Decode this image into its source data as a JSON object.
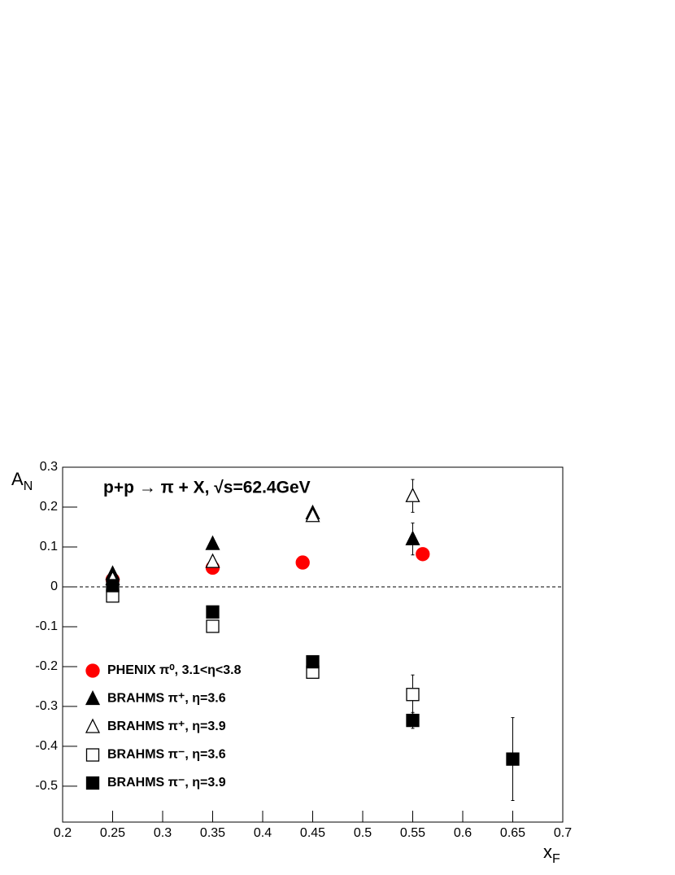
{
  "chart_data": {
    "type": "scatter",
    "title": "p+p → π + X, √s=62.4GeV",
    "xlabel": {
      "text": "x",
      "sub": "F"
    },
    "ylabel": {
      "text": "A",
      "sub": "N"
    },
    "xlim": [
      0.2,
      0.7
    ],
    "ylim": [
      -0.59,
      0.3
    ],
    "xticks": [
      0.2,
      0.25,
      0.3,
      0.35,
      0.4,
      0.45,
      0.5,
      0.55,
      0.6,
      0.65,
      0.7
    ],
    "yticks": [
      0.3,
      0.2,
      0.1,
      0,
      -0.1,
      -0.2,
      -0.3,
      -0.4,
      -0.5
    ],
    "hline": 0,
    "legend": "bottom-left",
    "series": [
      {
        "name": "PHENIX π⁰, 3.1<η<3.8",
        "color": "#ff0000",
        "marker": "circle",
        "x": [
          0.25,
          0.35,
          0.44,
          0.56
        ],
        "values": [
          0.018,
          0.048,
          0.061,
          0.082
        ],
        "errors": [
          null,
          null,
          null,
          null
        ]
      },
      {
        "name": "BRAHMS π⁺, η=3.6",
        "color": "#000000",
        "marker": "triangle",
        "x": [
          0.25,
          0.35,
          0.45,
          0.55
        ],
        "values": [
          0.033,
          0.108,
          0.185,
          0.12
        ],
        "errors": [
          null,
          null,
          null,
          0.04
        ]
      },
      {
        "name": "BRAHMS π⁺, η=3.9",
        "color": "#000000",
        "marker": "triangle-open",
        "x": [
          0.25,
          0.35,
          0.45,
          0.55
        ],
        "values": [
          0.02,
          0.063,
          0.178,
          0.228
        ],
        "errors": [
          null,
          null,
          null,
          0.041
        ]
      },
      {
        "name": "BRAHMS π⁻, η=3.6",
        "color": "#000000",
        "marker": "square-open",
        "x": [
          0.25,
          0.35,
          0.45,
          0.55
        ],
        "values": [
          -0.023,
          -0.099,
          -0.214,
          -0.27
        ],
        "errors": [
          null,
          null,
          null,
          0.049
        ]
      },
      {
        "name": "BRAHMS π⁻, η=3.9",
        "color": "#000000",
        "marker": "square",
        "x": [
          0.25,
          0.35,
          0.45,
          0.55,
          0.65
        ],
        "values": [
          0.003,
          -0.063,
          -0.188,
          -0.335,
          -0.432
        ],
        "errors": [
          null,
          null,
          null,
          0.02,
          0.104
        ]
      }
    ]
  }
}
